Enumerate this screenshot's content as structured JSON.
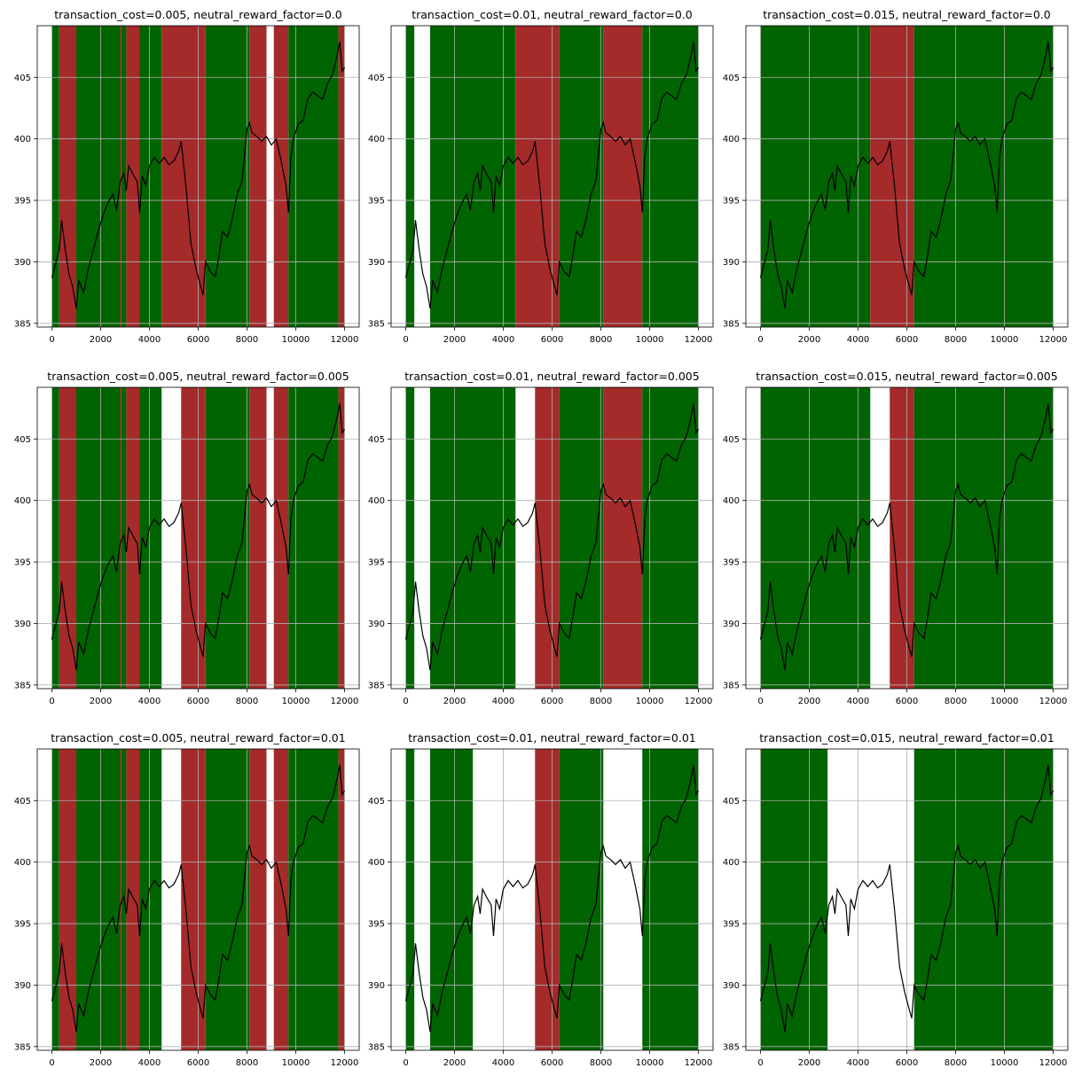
{
  "colors": {
    "long": "#006400",
    "short": "#a52a2a",
    "neutral": "#ffffff",
    "price": "#000000",
    "grid": "#b0b0b0"
  },
  "shared_axes": {
    "xlim": [
      -600,
      12600
    ],
    "ylim": [
      384.7,
      409.2
    ],
    "xticks": [
      0,
      2000,
      4000,
      6000,
      8000,
      10000,
      12000
    ],
    "xtick_labels": [
      "0",
      "2000",
      "4000",
      "6000",
      "8000",
      "10000",
      "12000"
    ],
    "yticks": [
      385,
      390,
      395,
      400,
      405
    ],
    "ytick_labels": [
      "385",
      "390",
      "395",
      "400",
      "405"
    ],
    "grid": true
  },
  "chart_data": [
    {
      "type": "line",
      "title": "transaction_cost=0.005, neutral_reward_factor=0.0",
      "regions": [
        {
          "start": 0,
          "end": 300,
          "position": "long"
        },
        {
          "start": 300,
          "end": 1000,
          "position": "short"
        },
        {
          "start": 1000,
          "end": 2800,
          "position": "long"
        },
        {
          "start": 2800,
          "end": 2850,
          "position": "short"
        },
        {
          "start": 2850,
          "end": 3050,
          "position": "long"
        },
        {
          "start": 3050,
          "end": 3600,
          "position": "short"
        },
        {
          "start": 3600,
          "end": 4500,
          "position": "long"
        },
        {
          "start": 4500,
          "end": 6300,
          "position": "short"
        },
        {
          "start": 6300,
          "end": 8100,
          "position": "long"
        },
        {
          "start": 8100,
          "end": 8800,
          "position": "short"
        },
        {
          "start": 8800,
          "end": 9100,
          "position": "neutral"
        },
        {
          "start": 9100,
          "end": 9700,
          "position": "short"
        },
        {
          "start": 9700,
          "end": 11750,
          "position": "long"
        },
        {
          "start": 11750,
          "end": 12000,
          "position": "short"
        }
      ]
    },
    {
      "type": "line",
      "title": "transaction_cost=0.01, neutral_reward_factor=0.0",
      "regions": [
        {
          "start": 0,
          "end": 350,
          "position": "long"
        },
        {
          "start": 350,
          "end": 1000,
          "position": "neutral"
        },
        {
          "start": 1000,
          "end": 4500,
          "position": "long"
        },
        {
          "start": 4500,
          "end": 6300,
          "position": "short"
        },
        {
          "start": 6300,
          "end": 8100,
          "position": "long"
        },
        {
          "start": 8100,
          "end": 9700,
          "position": "short"
        },
        {
          "start": 9700,
          "end": 12000,
          "position": "long"
        }
      ]
    },
    {
      "type": "line",
      "title": "transaction_cost=0.015, neutral_reward_factor=0.0",
      "regions": [
        {
          "start": 0,
          "end": 4500,
          "position": "long"
        },
        {
          "start": 4500,
          "end": 6300,
          "position": "short"
        },
        {
          "start": 6300,
          "end": 12000,
          "position": "long"
        }
      ]
    },
    {
      "type": "line",
      "title": "transaction_cost=0.005, neutral_reward_factor=0.005",
      "regions": [
        {
          "start": 0,
          "end": 300,
          "position": "long"
        },
        {
          "start": 300,
          "end": 1000,
          "position": "short"
        },
        {
          "start": 1000,
          "end": 2800,
          "position": "long"
        },
        {
          "start": 2800,
          "end": 2850,
          "position": "short"
        },
        {
          "start": 2850,
          "end": 3050,
          "position": "long"
        },
        {
          "start": 3050,
          "end": 3600,
          "position": "short"
        },
        {
          "start": 3600,
          "end": 4500,
          "position": "long"
        },
        {
          "start": 4500,
          "end": 5300,
          "position": "neutral"
        },
        {
          "start": 5300,
          "end": 6300,
          "position": "short"
        },
        {
          "start": 6300,
          "end": 8100,
          "position": "long"
        },
        {
          "start": 8100,
          "end": 8800,
          "position": "short"
        },
        {
          "start": 8800,
          "end": 9100,
          "position": "neutral"
        },
        {
          "start": 9100,
          "end": 9700,
          "position": "short"
        },
        {
          "start": 9700,
          "end": 11750,
          "position": "long"
        },
        {
          "start": 11750,
          "end": 12000,
          "position": "short"
        }
      ]
    },
    {
      "type": "line",
      "title": "transaction_cost=0.01, neutral_reward_factor=0.005",
      "regions": [
        {
          "start": 0,
          "end": 350,
          "position": "long"
        },
        {
          "start": 350,
          "end": 1000,
          "position": "neutral"
        },
        {
          "start": 1000,
          "end": 4500,
          "position": "long"
        },
        {
          "start": 4500,
          "end": 5300,
          "position": "neutral"
        },
        {
          "start": 5300,
          "end": 6300,
          "position": "short"
        },
        {
          "start": 6300,
          "end": 8100,
          "position": "long"
        },
        {
          "start": 8100,
          "end": 9700,
          "position": "short"
        },
        {
          "start": 9700,
          "end": 12000,
          "position": "long"
        }
      ]
    },
    {
      "type": "line",
      "title": "transaction_cost=0.015, neutral_reward_factor=0.005",
      "regions": [
        {
          "start": 0,
          "end": 4500,
          "position": "long"
        },
        {
          "start": 4500,
          "end": 5300,
          "position": "neutral"
        },
        {
          "start": 5300,
          "end": 6300,
          "position": "short"
        },
        {
          "start": 6300,
          "end": 12000,
          "position": "long"
        }
      ]
    },
    {
      "type": "line",
      "title": "transaction_cost=0.005, neutral_reward_factor=0.01",
      "regions": [
        {
          "start": 0,
          "end": 300,
          "position": "long"
        },
        {
          "start": 300,
          "end": 1000,
          "position": "short"
        },
        {
          "start": 1000,
          "end": 2800,
          "position": "long"
        },
        {
          "start": 2800,
          "end": 2850,
          "position": "short"
        },
        {
          "start": 2850,
          "end": 3050,
          "position": "long"
        },
        {
          "start": 3050,
          "end": 3600,
          "position": "short"
        },
        {
          "start": 3600,
          "end": 4500,
          "position": "long"
        },
        {
          "start": 4500,
          "end": 5300,
          "position": "neutral"
        },
        {
          "start": 5300,
          "end": 6300,
          "position": "short"
        },
        {
          "start": 6300,
          "end": 8100,
          "position": "long"
        },
        {
          "start": 8100,
          "end": 8800,
          "position": "short"
        },
        {
          "start": 8800,
          "end": 9100,
          "position": "neutral"
        },
        {
          "start": 9100,
          "end": 9700,
          "position": "short"
        },
        {
          "start": 9700,
          "end": 11750,
          "position": "long"
        },
        {
          "start": 11750,
          "end": 12000,
          "position": "short"
        }
      ]
    },
    {
      "type": "line",
      "title": "transaction_cost=0.01, neutral_reward_factor=0.01",
      "regions": [
        {
          "start": 0,
          "end": 350,
          "position": "long"
        },
        {
          "start": 350,
          "end": 1000,
          "position": "neutral"
        },
        {
          "start": 1000,
          "end": 2750,
          "position": "long"
        },
        {
          "start": 2750,
          "end": 5300,
          "position": "neutral"
        },
        {
          "start": 5300,
          "end": 6300,
          "position": "short"
        },
        {
          "start": 6300,
          "end": 8100,
          "position": "long"
        },
        {
          "start": 8100,
          "end": 9700,
          "position": "neutral"
        },
        {
          "start": 9700,
          "end": 12000,
          "position": "long"
        }
      ]
    },
    {
      "type": "line",
      "title": "transaction_cost=0.015, neutral_reward_factor=0.01",
      "regions": [
        {
          "start": 0,
          "end": 2750,
          "position": "long"
        },
        {
          "start": 2750,
          "end": 6300,
          "position": "neutral"
        },
        {
          "start": 6300,
          "end": 12000,
          "position": "long"
        }
      ]
    }
  ],
  "price_series": {
    "x": [
      0,
      150,
      300,
      400,
      550,
      700,
      850,
      1000,
      1100,
      1300,
      1500,
      1700,
      1900,
      2100,
      2300,
      2500,
      2650,
      2800,
      2950,
      3050,
      3150,
      3300,
      3500,
      3600,
      3700,
      3850,
      4000,
      4200,
      4400,
      4600,
      4800,
      5000,
      5200,
      5300,
      5500,
      5700,
      5900,
      6100,
      6200,
      6300,
      6500,
      6700,
      6850,
      7000,
      7200,
      7400,
      7600,
      7800,
      8000,
      8100,
      8200,
      8400,
      8600,
      8800,
      9000,
      9200,
      9400,
      9600,
      9700,
      9800,
      9900,
      10100,
      10300,
      10500,
      10700,
      10900,
      11100,
      11300,
      11500,
      11700,
      11800,
      11900,
      12000
    ],
    "y": [
      388.7,
      389.8,
      391.0,
      393.4,
      391.0,
      389.0,
      388.0,
      386.2,
      388.5,
      387.5,
      389.5,
      391.0,
      392.5,
      393.8,
      394.8,
      395.5,
      394.2,
      396.5,
      397.2,
      395.8,
      397.8,
      397.2,
      396.5,
      394.0,
      397.0,
      396.2,
      397.8,
      398.5,
      398.0,
      398.5,
      397.9,
      398.2,
      399.0,
      399.8,
      396.0,
      391.5,
      389.5,
      388.0,
      387.3,
      390.0,
      389.2,
      388.8,
      390.5,
      392.5,
      392.0,
      393.5,
      395.5,
      396.6,
      400.8,
      401.3,
      400.5,
      400.2,
      399.8,
      400.2,
      399.5,
      400.0,
      398.2,
      396.2,
      394.0,
      398.5,
      400.0,
      401.2,
      401.5,
      403.3,
      403.8,
      403.5,
      403.2,
      404.5,
      405.2,
      406.8,
      407.9,
      405.5,
      405.8
    ]
  }
}
